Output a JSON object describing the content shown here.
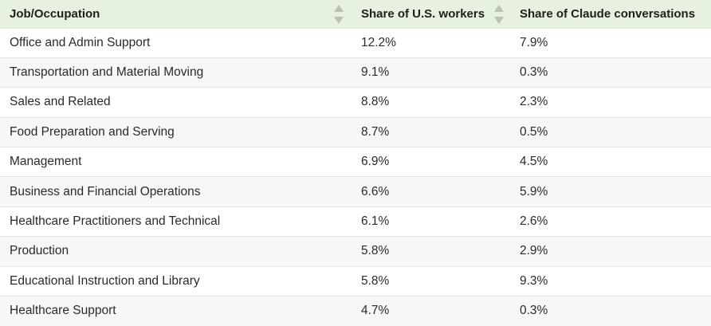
{
  "table": {
    "headers": [
      "Job/Occupation",
      "Share of U.S. workers",
      "Share of Claude conversations"
    ],
    "rows": [
      [
        "Office and Admin Support",
        "12.2%",
        "7.9%"
      ],
      [
        "Transportation and Material Moving",
        "9.1%",
        "0.3%"
      ],
      [
        "Sales and Related",
        "8.8%",
        "2.3%"
      ],
      [
        "Food Preparation and Serving",
        "8.7%",
        "0.5%"
      ],
      [
        "Management",
        "6.9%",
        "4.5%"
      ],
      [
        "Business and Financial Operations",
        "6.6%",
        "5.9%"
      ],
      [
        "Healthcare Practitioners and Technical",
        "6.1%",
        "2.6%"
      ],
      [
        "Production",
        "5.8%",
        "2.9%"
      ],
      [
        "Educational Instruction and Library",
        "5.8%",
        "9.3%"
      ],
      [
        "Healthcare Support",
        "4.7%",
        "0.3%"
      ]
    ]
  },
  "icons": {
    "sort": "sort-icon"
  },
  "colors": {
    "header_background": "#e6f2df",
    "row_stripe": "#f7f7f7",
    "row_border": "#e3e3e3",
    "sort_icon": "#b9c2b4"
  }
}
